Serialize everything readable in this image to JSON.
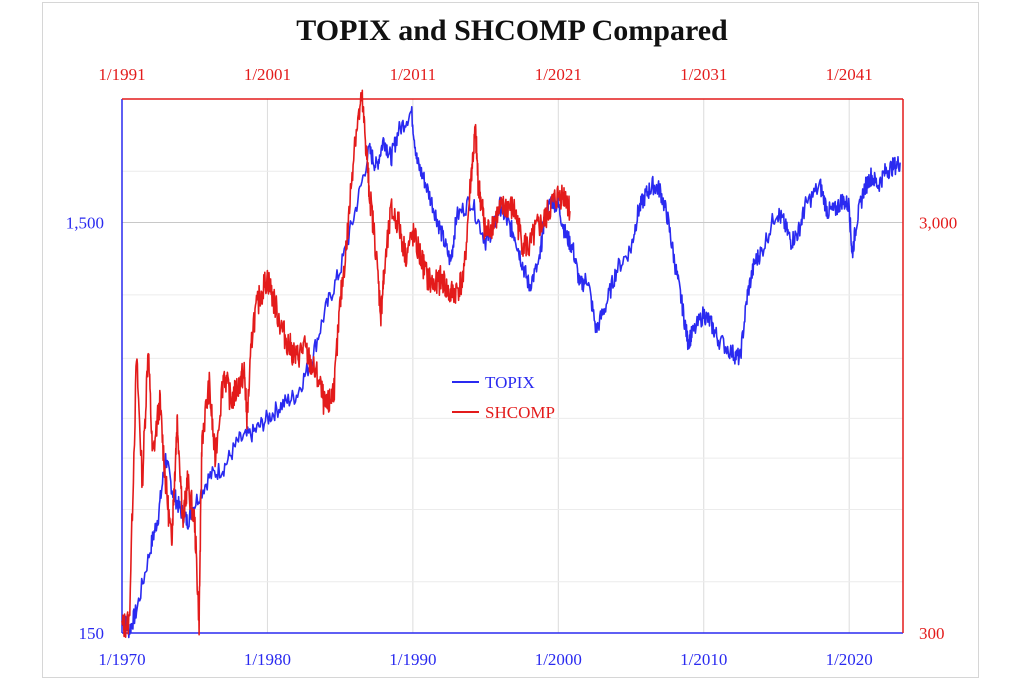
{
  "chart_data": {
    "type": "line",
    "title": "TOPIX and SHCOMP Compared",
    "colors": {
      "topix": "#2a2af0",
      "shcomp": "#e31b1b",
      "grid": "#dcdcdc"
    },
    "x_bottom": {
      "range": [
        1970,
        2023.7
      ],
      "ticks": [
        1970,
        1980,
        1990,
        2000,
        2010,
        2020
      ],
      "tick_labels": [
        "1/1970",
        "1/1980",
        "1/1990",
        "1/2000",
        "1/2010",
        "1/2020"
      ]
    },
    "x_top": {
      "range": [
        1991,
        2044.7
      ],
      "ticks": [
        1991,
        2001,
        2011,
        2021,
        2031,
        2041
      ],
      "tick_labels": [
        "1/1991",
        "1/2001",
        "1/2011",
        "1/2021",
        "1/2031",
        "1/2041"
      ]
    },
    "y_left": {
      "scale": "log",
      "range": [
        150,
        3000
      ],
      "labeled_ticks": [
        150,
        1500
      ],
      "tick_labels": [
        "150",
        "1,500"
      ]
    },
    "y_right": {
      "scale": "log",
      "range": [
        300,
        6000
      ],
      "labeled_ticks": [
        300,
        3000
      ],
      "tick_labels": [
        "300",
        "3,000"
      ]
    },
    "legend": {
      "position": "center",
      "entries": [
        "TOPIX",
        "SHCOMP"
      ]
    },
    "series": [
      {
        "name": "TOPIX",
        "axis": "bottom-left",
        "x": [
          1970,
          1970.5,
          1971,
          1972,
          1972.5,
          1973,
          1973.5,
          1974,
          1974.5,
          1975,
          1976,
          1977,
          1978,
          1979,
          1980,
          1981,
          1982,
          1983,
          1984,
          1985,
          1986,
          1987,
          1987.5,
          1988,
          1988.5,
          1989,
          1989.9,
          1990.3,
          1990.8,
          1991.5,
          1992,
          1992.6,
          1993,
          1994,
          1995,
          1995.5,
          1996,
          1996.5,
          1997,
          1997.5,
          1998,
          1998.7,
          1999,
          1999.5,
          2000,
          2000.5,
          2001,
          2001.5,
          2002,
          2002.6,
          2003.3,
          2004,
          2005,
          2005.5,
          2006,
          2006.5,
          2007,
          2007.5,
          2008,
          2008.5,
          2008.9,
          2009.2,
          2010,
          2010.5,
          2011,
          2012,
          2012.5,
          2013,
          2013.5,
          2014,
          2015,
          2015.5,
          2016,
          2016.5,
          2017,
          2018,
          2018.5,
          2019,
          2019.5,
          2020,
          2020.2,
          2020.5,
          2021,
          2021.5,
          2022,
          2022.5,
          2023,
          2023.5
        ],
        "values": [
          165,
          152,
          170,
          245,
          290,
          400,
          330,
          300,
          280,
          310,
          360,
          380,
          440,
          460,
          500,
          540,
          570,
          690,
          920,
          1150,
          1580,
          2250,
          2050,
          2400,
          2150,
          2500,
          2800,
          2100,
          1900,
          1600,
          1400,
          1200,
          1550,
          1700,
          1350,
          1450,
          1650,
          1500,
          1400,
          1200,
          1050,
          1200,
          1500,
          1700,
          1650,
          1400,
          1300,
          1050,
          1100,
          820,
          950,
          1150,
          1300,
          1600,
          1750,
          1850,
          1800,
          1550,
          1200,
          950,
          770,
          800,
          900,
          850,
          780,
          720,
          700,
          1000,
          1200,
          1280,
          1600,
          1500,
          1350,
          1420,
          1650,
          1850,
          1600,
          1600,
          1700,
          1650,
          1250,
          1500,
          1800,
          1950,
          1850,
          2000,
          2050,
          2100
        ]
      },
      {
        "name": "SHCOMP",
        "axis": "top-right",
        "x": [
          1991,
          1991.5,
          1992,
          1992.4,
          1992.8,
          1993.1,
          1993.6,
          1994,
          1994.4,
          1994.6,
          1994.8,
          1995.2,
          1995.5,
          1996,
          1996.3,
          1996.5,
          1997,
          1997.4,
          1998,
          1998.5,
          1999,
          1999.4,
          1999.6,
          2000,
          2000.5,
          2001,
          2001.5,
          2002,
          2002.5,
          2003,
          2003.5,
          2004,
          2004.5,
          2005,
          2005.3,
          2005.6,
          2006,
          2006.5,
          2007,
          2007.5,
          2007.8,
          2008,
          2008.4,
          2008.8,
          2009,
          2009.5,
          2010,
          2010.5,
          2011,
          2011.5,
          2012,
          2012.5,
          2013,
          2013.5,
          2014,
          2014.5,
          2015,
          2015.3,
          2015.5,
          2015.8,
          2016,
          2016.5,
          2017,
          2017.5,
          2018,
          2018.5,
          2019,
          2019.5,
          2020,
          2020.5,
          2021,
          2021.5,
          2021.8
        ],
        "values": [
          310,
          320,
          1400,
          700,
          1500,
          800,
          1100,
          700,
          500,
          700,
          1000,
          560,
          700,
          560,
          320,
          900,
          1200,
          800,
          1300,
          1100,
          1200,
          1300,
          1000,
          1700,
          2000,
          2200,
          1900,
          1650,
          1500,
          1400,
          1500,
          1350,
          1250,
          1050,
          1100,
          1200,
          1900,
          2800,
          4800,
          6000,
          4500,
          3600,
          2700,
          1800,
          2200,
          3200,
          3000,
          2500,
          2800,
          2500,
          2200,
          2100,
          2200,
          2000,
          2050,
          2200,
          3900,
          5000,
          3700,
          3200,
          2800,
          3000,
          3200,
          3300,
          3200,
          2700,
          2600,
          2900,
          3000,
          3300,
          3500,
          3500,
          3200
        ]
      }
    ]
  }
}
